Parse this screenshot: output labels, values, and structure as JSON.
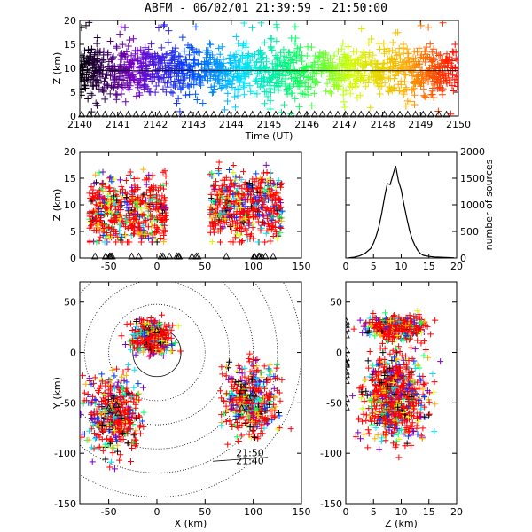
{
  "title": "ABFM - 06/02/01 21:39:59 - 21:50:00",
  "chart_data": [
    {
      "panel": "altitude-time",
      "type": "scatter",
      "xlabel": "Time (UT)",
      "ylabel": "Z (km)",
      "xlim": [
        2140,
        2150
      ],
      "ylim": [
        0,
        20
      ],
      "xticks": [
        "2140",
        "2141",
        "2142",
        "2143",
        "2144",
        "2145",
        "2146",
        "2147",
        "2148",
        "2149",
        "2150"
      ],
      "yticks": [
        "0",
        "5",
        "10",
        "15",
        "20"
      ],
      "color_scale": [
        "#000000",
        "#7a00c8",
        "#0040ff",
        "#00e0ff",
        "#00ff60",
        "#d0ff00",
        "#ffb000",
        "#ff0000"
      ],
      "mean_altitude_km": 9.5,
      "typical_range_km": [
        5,
        13
      ],
      "ground_station_triangles_z_km": 0
    },
    {
      "panel": "altitude-x",
      "type": "scatter",
      "xlabel": "",
      "ylabel": "Z (km)",
      "xlim": [
        -80,
        150
      ],
      "ylim": [
        0,
        20
      ],
      "xticks": [
        "-50",
        "0",
        "50",
        "100",
        "150"
      ],
      "yticks": [
        "0",
        "5",
        "10",
        "15",
        "20"
      ],
      "clusters": [
        {
          "x_range_km": [
            -70,
            10
          ],
          "z_range_km": [
            3,
            19
          ],
          "center_z_km": 9
        },
        {
          "x_range_km": [
            55,
            130
          ],
          "z_range_km": [
            3,
            18
          ],
          "center_z_km": 10
        }
      ]
    },
    {
      "panel": "altitude-histogram",
      "type": "bar",
      "xlabel": "",
      "ylabel": "number of sources",
      "xlim": [
        0,
        20
      ],
      "ylim": [
        0,
        2000
      ],
      "xticks": [
        "0",
        "5",
        "10",
        "15",
        "20"
      ],
      "yticks": [
        "0",
        "500",
        "1000",
        "1500",
        "2000"
      ],
      "x": [
        0.5,
        1.5,
        2.5,
        3.5,
        4.5,
        5.0,
        5.5,
        6.0,
        6.5,
        7.0,
        7.5,
        8.0,
        8.5,
        9.0,
        9.5,
        10.0,
        10.5,
        11.0,
        11.5,
        12.0,
        12.5,
        13.0,
        13.5,
        14.0,
        15.0,
        16.0,
        17.0,
        18.0,
        19.5
      ],
      "values": [
        5,
        15,
        40,
        90,
        180,
        280,
        420,
        600,
        850,
        1150,
        1400,
        1380,
        1560,
        1730,
        1450,
        1280,
        1000,
        750,
        520,
        350,
        230,
        140,
        80,
        50,
        30,
        20,
        15,
        10,
        5
      ]
    },
    {
      "panel": "plan-view",
      "type": "scatter",
      "xlabel": "X (km)",
      "ylabel": "Y (km)",
      "xlim": [
        -80,
        150
      ],
      "ylim": [
        -150,
        70
      ],
      "xticks": [
        "-50",
        "0",
        "50",
        "100",
        "150"
      ],
      "yticks": [
        "-150",
        "-100",
        "-50",
        "0",
        "50"
      ],
      "range_rings_km": [
        25,
        50,
        75,
        100,
        125,
        150
      ],
      "inner_ring_center_km": [
        0,
        0
      ],
      "annotation_labels": [
        "21:50",
        "21:40"
      ],
      "clusters": [
        {
          "center_km": [
            -5,
            15
          ]
        },
        {
          "center_km": [
            -45,
            -60
          ]
        },
        {
          "center_km": [
            98,
            -45
          ]
        }
      ]
    },
    {
      "panel": "y-altitude",
      "type": "scatter",
      "xlabel": "Z (km)",
      "ylabel": "",
      "xlim": [
        0,
        20
      ],
      "ylim": [
        -150,
        70
      ],
      "xticks": [
        "0",
        "5",
        "10",
        "15",
        "20"
      ],
      "yticks": [
        "-150",
        "-100",
        "-50",
        "0",
        "50"
      ]
    }
  ]
}
